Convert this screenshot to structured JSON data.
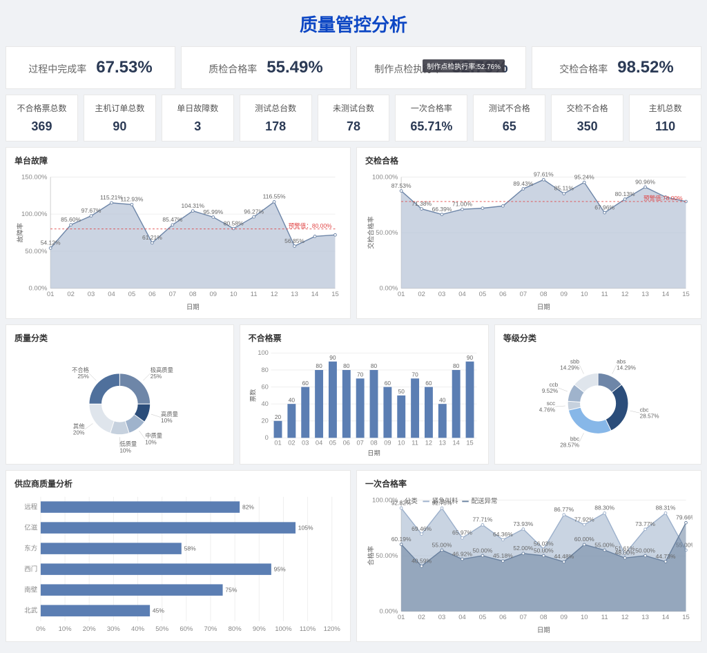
{
  "page_title": "质量管控分析",
  "colors": {
    "primary": "#0d47c4",
    "area_fill": "#b5c2d5",
    "area_stroke": "#6e86a8",
    "bar": "#5b7eb3",
    "grid": "#eeeeee",
    "axis": "#cccccc",
    "warn": "#e04545",
    "bg": "#ffffff"
  },
  "kpi_large": [
    {
      "label": "过程中完成率",
      "value": "67.53%"
    },
    {
      "label": "质检合格率",
      "value": "55.49%"
    },
    {
      "label": "制作点检执行率",
      "value": "52.76%",
      "tooltip": "制作点检执行率:52.76%"
    },
    {
      "label": "交检合格率",
      "value": "98.52%"
    }
  ],
  "kpi_small": [
    {
      "label": "不合格票总数",
      "value": "369"
    },
    {
      "label": "主机订单总数",
      "value": "90"
    },
    {
      "label": "单日故障数",
      "value": "3"
    },
    {
      "label": "测试总台数",
      "value": "178"
    },
    {
      "label": "未测试台数",
      "value": "78"
    },
    {
      "label": "一次合格率",
      "value": "65.71%"
    },
    {
      "label": "测试不合格",
      "value": "65"
    },
    {
      "label": "交检不合格",
      "value": "350"
    },
    {
      "label": "主机总数",
      "value": "110"
    }
  ],
  "area_chart_1": {
    "title": "单台故障",
    "ylabel": "故障率",
    "xlabel": "日期",
    "ylim": [
      0,
      150
    ],
    "ystep": 50,
    "y_suffix": "%",
    "warn": {
      "value": 80,
      "label": "预警值：80.00%"
    },
    "categories": [
      "01",
      "02",
      "03",
      "04",
      "05",
      "06",
      "07",
      "08",
      "09",
      "10",
      "11",
      "12",
      "13",
      "14",
      "15"
    ],
    "values": [
      54.12,
      85.6,
      97.67,
      115.21,
      112.93,
      61.21,
      85.47,
      104.31,
      95.99,
      80.58,
      96.27,
      116.55,
      56.85,
      70.0,
      72.0
    ],
    "show_labels": [
      54.12,
      85.6,
      97.67,
      115.21,
      112.93,
      61.21,
      85.47,
      104.31,
      95.99,
      80.58,
      96.27,
      116.55,
      56.85,
      null,
      null
    ]
  },
  "area_chart_2": {
    "title": "交检合格",
    "ylabel": "交检合格率",
    "xlabel": "日期",
    "ylim": [
      0,
      100
    ],
    "ystep": 50,
    "y_suffix": "%",
    "warn": {
      "value": 78,
      "label": "预警值:78.00%"
    },
    "categories": [
      "01",
      "02",
      "03",
      "04",
      "05",
      "06",
      "07",
      "08",
      "09",
      "10",
      "11",
      "12",
      "13",
      "14",
      "15"
    ],
    "values": [
      87.53,
      71.38,
      66.39,
      71.0,
      72.0,
      74.0,
      89.43,
      97.61,
      85.11,
      95.24,
      67.96,
      80.13,
      90.96,
      82.0,
      78.0
    ],
    "show_labels": [
      87.53,
      71.38,
      66.39,
      71.0,
      null,
      null,
      89.43,
      97.61,
      85.11,
      95.24,
      67.96,
      80.13,
      90.96,
      null,
      null
    ]
  },
  "donut_1": {
    "title": "质量分类",
    "slices": [
      {
        "name": "极高质量",
        "pct": 25,
        "color": "#6e86a8"
      },
      {
        "name": "高质量",
        "pct": 10,
        "color": "#2b4d7a"
      },
      {
        "name": "中质量",
        "pct": 10,
        "color": "#9fb3cc"
      },
      {
        "name": "低质量",
        "pct": 10,
        "color": "#c6d1de"
      },
      {
        "name": "其他",
        "pct": 20,
        "color": "#dfe5ec"
      },
      {
        "name": "不合格",
        "pct": 25,
        "color": "#4f709c"
      }
    ]
  },
  "bar_chart": {
    "title": "不合格票",
    "ylabel": "票数",
    "xlabel": "日期",
    "ylim": [
      0,
      100
    ],
    "ystep": 20,
    "categories": [
      "01",
      "02",
      "03",
      "04",
      "05",
      "06",
      "07",
      "08",
      "09",
      "10",
      "11",
      "12",
      "13",
      "14",
      "15"
    ],
    "values": [
      20,
      40,
      60,
      80,
      90,
      80,
      70,
      80,
      60,
      50,
      70,
      60,
      40,
      80,
      90
    ],
    "bar_color": "#5b7eb3"
  },
  "donut_2": {
    "title": "等级分类",
    "slices": [
      {
        "name": "abs",
        "pct": 14.29,
        "color": "#6e86a8"
      },
      {
        "name": "cbc",
        "pct": 28.57,
        "color": "#2b4d7a"
      },
      {
        "name": "bbc",
        "pct": 28.57,
        "color": "#87b7e8"
      },
      {
        "name": "scc",
        "pct": 4.76,
        "color": "#c6d1de"
      },
      {
        "name": "ccb",
        "pct": 9.52,
        "color": "#9fb3cc"
      },
      {
        "name": "sbb",
        "pct": 14.29,
        "color": "#dfe5ec"
      }
    ]
  },
  "hbar_chart": {
    "title": "供应商质量分析",
    "xlim": [
      0,
      120
    ],
    "xstep": 10,
    "x_suffix": "%",
    "categories": [
      "远程",
      "亿滋",
      "东方",
      "西门",
      "南壁",
      "北武"
    ],
    "values": [
      82,
      105,
      58,
      95,
      75,
      45
    ],
    "bar_color": "#5b7eb3"
  },
  "multi_area": {
    "title": "一次合格率",
    "ylabel": "合格率",
    "xlabel": "日期",
    "ylim": [
      0,
      100
    ],
    "ystep": 50,
    "y_suffix": "%",
    "legend_label": "分类",
    "categories": [
      "01",
      "02",
      "03",
      "04",
      "05",
      "06",
      "07",
      "08",
      "09",
      "10",
      "11",
      "12",
      "13",
      "14",
      "15"
    ],
    "series": [
      {
        "name": "紧急叫料",
        "color": "#9cb0cb",
        "values": [
          92.82,
          69.46,
          92.75,
          65.97,
          77.71,
          64.36,
          73.93,
          56.03,
          86.77,
          77.92,
          88.3,
          51.61,
          73.77,
          88.31,
          55.0
        ]
      },
      {
        "name": "配送异常",
        "color": "#6a819f",
        "values": [
          60.19,
          40.59,
          55.0,
          46.92,
          50.0,
          45.18,
          52.0,
          50.0,
          44.48,
          60.0,
          55.0,
          48.0,
          50.0,
          44.73,
          79.66
        ]
      }
    ]
  }
}
